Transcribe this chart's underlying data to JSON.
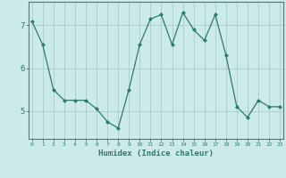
{
  "x": [
    0,
    1,
    2,
    3,
    4,
    5,
    6,
    7,
    8,
    9,
    10,
    11,
    12,
    13,
    14,
    15,
    16,
    17,
    18,
    19,
    20,
    21,
    22,
    23
  ],
  "y": [
    7.1,
    6.55,
    5.5,
    5.25,
    5.25,
    5.25,
    5.05,
    4.75,
    4.6,
    5.5,
    6.55,
    7.15,
    7.25,
    6.55,
    7.3,
    6.9,
    6.65,
    7.25,
    6.3,
    5.1,
    4.85,
    5.25,
    5.1,
    5.1
  ],
  "line_color": "#2d7a6e",
  "marker": "D",
  "marker_size": 2.0,
  "bg_color": "#cceaea",
  "grid_color": "#aacccc",
  "xlabel": "Humidex (Indice chaleur)",
  "yticks": [
    5,
    6,
    7
  ],
  "xticks": [
    0,
    1,
    2,
    3,
    4,
    5,
    6,
    7,
    8,
    9,
    10,
    11,
    12,
    13,
    14,
    15,
    16,
    17,
    18,
    19,
    20,
    21,
    22,
    23
  ],
  "xlim": [
    -0.3,
    23.3
  ],
  "ylim": [
    4.35,
    7.55
  ]
}
